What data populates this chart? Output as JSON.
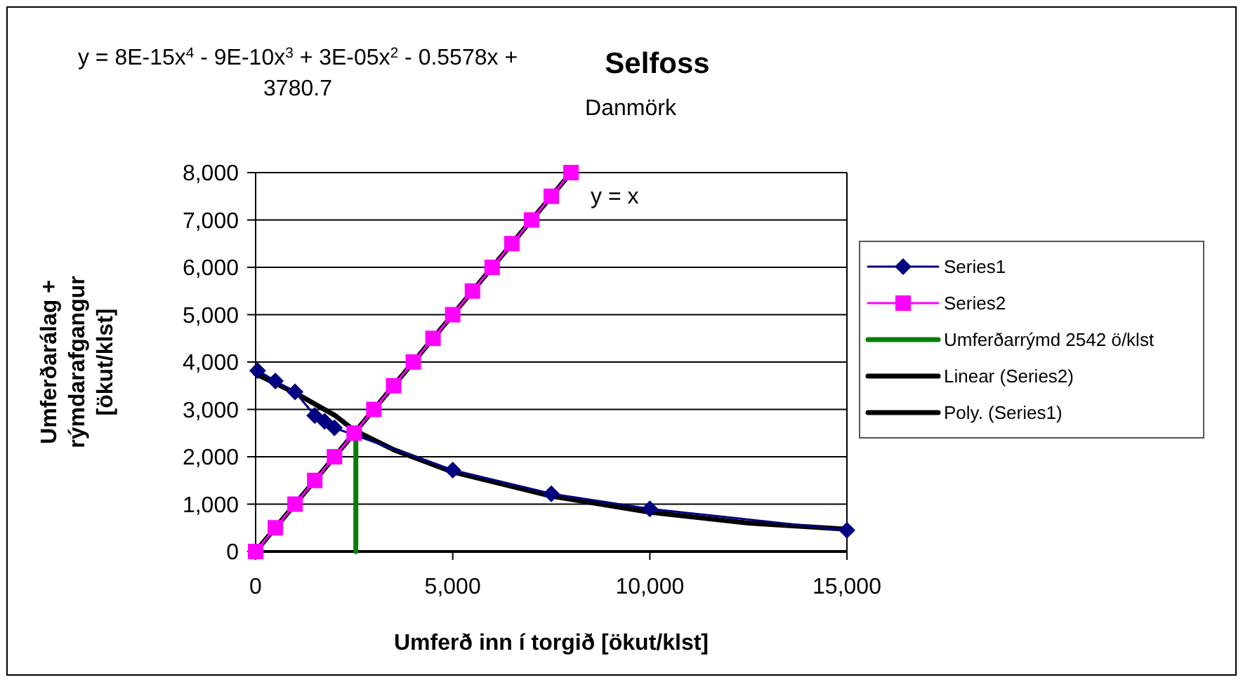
{
  "chart_data": {
    "type": "line",
    "title": "Selfoss",
    "subtitle": "Danmörk",
    "xlabel": "Umferð inn í torgið [ökut/klst]",
    "ylabel": "Umferðarálag + rýmdarafgangur [ökut/klst]",
    "xlim": [
      0,
      15000
    ],
    "xticks": [
      0,
      {
        "value": 5000,
        "label": "5,000"
      },
      {
        "value": 10000,
        "label": "10,000"
      },
      {
        "value": 15000,
        "label": "15,000"
      }
    ],
    "ylim": [
      0,
      8000
    ],
    "yticks": [
      0,
      {
        "value": 1000,
        "label": "1,000"
      },
      {
        "value": 2000,
        "label": "2,000"
      },
      {
        "value": 3000,
        "label": "3,000"
      },
      {
        "value": 4000,
        "label": "4,000"
      },
      {
        "value": 5000,
        "label": "5,000"
      },
      {
        "value": 6000,
        "label": "6,000"
      },
      {
        "value": 7000,
        "label": "7,000"
      },
      {
        "value": 8000,
        "label": "8,000"
      }
    ],
    "grid": "y",
    "legend": "right",
    "series": [
      {
        "name": "Series1",
        "color": "#000080",
        "marker": "diamond",
        "x": [
          50,
          500,
          1000,
          1500,
          1750,
          2000,
          5000,
          7500,
          10000,
          15000
        ],
        "values": [
          3820,
          3600,
          3370,
          2870,
          2750,
          2610,
          1720,
          1220,
          900,
          450
        ]
      },
      {
        "name": "Series2",
        "color": "#ff00ff",
        "marker": "square",
        "x": [
          0,
          500,
          1000,
          1500,
          2000,
          2500,
          3000,
          3500,
          4000,
          4500,
          5000,
          5500,
          6000,
          6500,
          7000,
          7500,
          8000
        ],
        "values": [
          0,
          500,
          1000,
          1500,
          2000,
          2500,
          3000,
          3500,
          4000,
          4500,
          5000,
          5500,
          6000,
          6500,
          7000,
          7500,
          8000
        ]
      },
      {
        "name": "Umferðarrýmd 2542 ö/klst",
        "color": "#008000",
        "x": [
          2542,
          2542
        ],
        "values": [
          0,
          2542
        ]
      },
      {
        "name": "Linear (Series2)",
        "color": "#000000",
        "x": [
          0,
          8000
        ],
        "values": [
          0,
          8000
        ]
      },
      {
        "name": "Poly. (Series1)",
        "color": "#000000",
        "x": [
          0,
          1000,
          2000,
          2500,
          3500,
          5000,
          7500,
          10000,
          12500,
          15000
        ],
        "values": [
          3750,
          3350,
          2880,
          2560,
          2150,
          1680,
          1170,
          830,
          600,
          470
        ]
      }
    ],
    "annotations": [
      "y = 8E-15x$^{4}$ - 9E-10x$^{3}$ + 3E-05x$^{2}$ - 0.5578x + 3780.7",
      {
        "text": "y = x",
        "x": 8000,
        "y": 8000
      }
    ]
  }
}
